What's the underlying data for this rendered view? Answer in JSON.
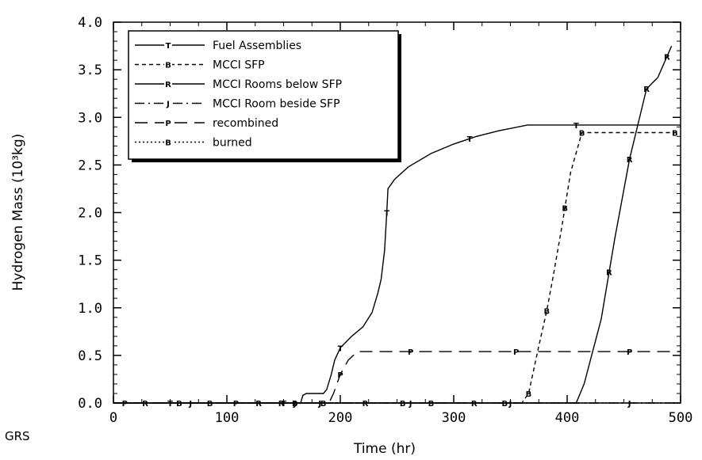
{
  "chart_data": {
    "type": "line",
    "xlabel": "Time  (hr)",
    "ylabel": "Hydrogen Mass (10³kg)",
    "xlim": [
      0,
      500
    ],
    "ylim": [
      0,
      4.0
    ],
    "xticks": [
      "0",
      "100",
      "200",
      "300",
      "400",
      "500"
    ],
    "yticks": [
      "0.0",
      "0.5",
      "1.0",
      "1.5",
      "2.0",
      "2.5",
      "3.0",
      "3.5",
      "4.0"
    ],
    "corner_label": "GRS",
    "legend_position": "top-left",
    "series": [
      {
        "name": "Fuel Assemblies",
        "marker": "T",
        "dash": "solid",
        "points": [
          [
            0,
            0
          ],
          [
            165,
            0
          ],
          [
            167,
            0.08
          ],
          [
            170,
            0.1
          ],
          [
            185,
            0.1
          ],
          [
            188,
            0.14
          ],
          [
            192,
            0.3
          ],
          [
            195,
            0.45
          ],
          [
            200,
            0.58
          ],
          [
            210,
            0.7
          ],
          [
            220,
            0.8
          ],
          [
            228,
            0.95
          ],
          [
            233,
            1.15
          ],
          [
            236,
            1.3
          ],
          [
            239,
            1.6
          ],
          [
            241,
            2.0
          ],
          [
            242,
            2.25
          ],
          [
            248,
            2.35
          ],
          [
            260,
            2.48
          ],
          [
            280,
            2.62
          ],
          [
            300,
            2.72
          ],
          [
            320,
            2.8
          ],
          [
            340,
            2.86
          ],
          [
            365,
            2.92
          ],
          [
            400,
            2.92
          ],
          [
            500,
            2.92
          ]
        ],
        "marker_x": [
          50,
          150,
          200,
          241,
          314,
          408
        ]
      },
      {
        "name": "MCCI SFP",
        "marker": "B",
        "dash": "short",
        "points": [
          [
            0,
            0
          ],
          [
            360,
            0
          ],
          [
            366,
            0.1
          ],
          [
            375,
            0.6
          ],
          [
            382,
            0.97
          ],
          [
            388,
            1.35
          ],
          [
            395,
            1.83
          ],
          [
            403,
            2.42
          ],
          [
            413,
            2.84
          ],
          [
            500,
            2.84
          ]
        ],
        "marker_x": [
          58,
          85,
          160,
          185,
          255,
          280,
          345,
          366,
          382,
          398,
          413,
          495
        ]
      },
      {
        "name": "MCCI Rooms below SFP",
        "marker": "R",
        "dash": "solid",
        "points": [
          [
            0,
            0
          ],
          [
            408,
            0
          ],
          [
            415,
            0.2
          ],
          [
            430,
            0.88
          ],
          [
            442,
            1.73
          ],
          [
            455,
            2.56
          ],
          [
            470,
            3.3
          ],
          [
            480,
            3.42
          ],
          [
            492,
            3.75
          ]
        ],
        "marker_x": [
          28,
          128,
          148,
          222,
          318,
          437,
          455,
          470,
          488
        ]
      },
      {
        "name": "MCCI Room beside SFP",
        "marker": "J",
        "dash": "dashdot",
        "points": [
          [
            0,
            0
          ],
          [
            500,
            0
          ]
        ],
        "marker_x": [
          68,
          160,
          182,
          262,
          350,
          455
        ]
      },
      {
        "name": "recombined",
        "marker": "P",
        "dash": "long",
        "points": [
          [
            0,
            0
          ],
          [
            190,
            0
          ],
          [
            194,
            0.1
          ],
          [
            200,
            0.3
          ],
          [
            207,
            0.45
          ],
          [
            215,
            0.54
          ],
          [
            500,
            0.54
          ]
        ],
        "marker_x": [
          10,
          108,
          200,
          262,
          355,
          455
        ]
      },
      {
        "name": "burned",
        "marker": "B",
        "dash": "dotted",
        "points": [
          [
            0,
            0
          ],
          [
            500,
            0
          ]
        ],
        "marker_x": []
      }
    ]
  }
}
